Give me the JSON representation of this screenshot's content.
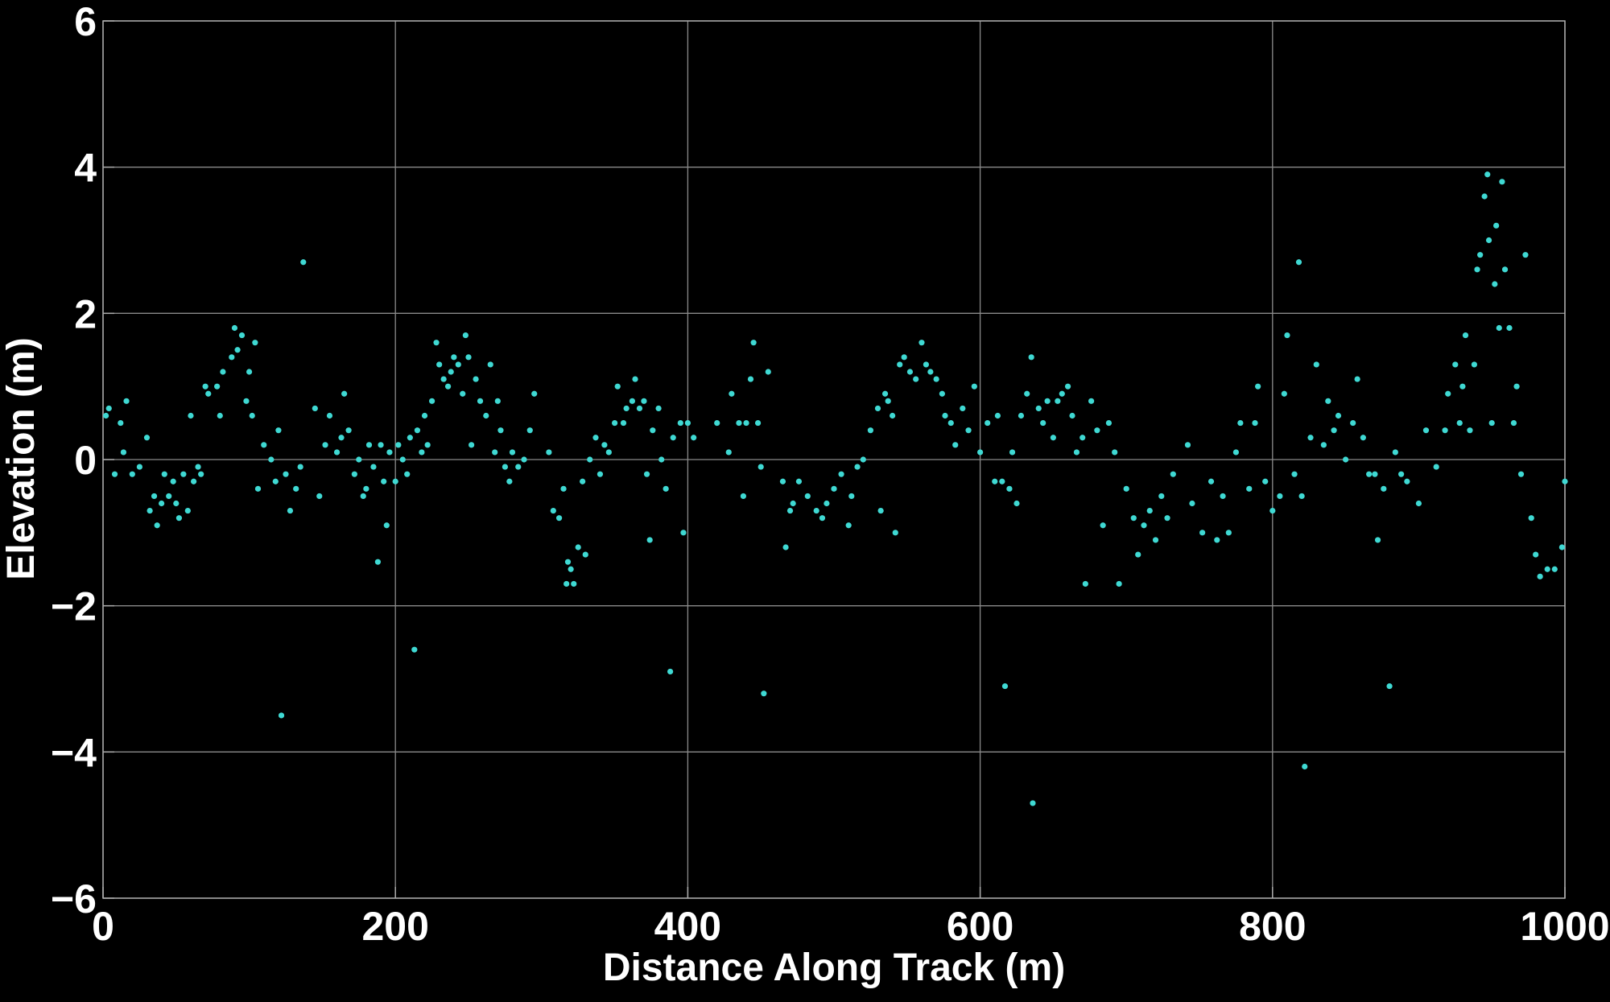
{
  "chart_data": {
    "type": "scatter",
    "x_label": "Distance Along Track (m)",
    "y_label": "Elevation (m)",
    "xlim": [
      0,
      1000
    ],
    "ylim": [
      -6,
      6
    ],
    "xticks": [
      0,
      200,
      400,
      600,
      800,
      1000
    ],
    "yticks": [
      {
        "value": -6,
        "label": "−6"
      },
      {
        "value": -4,
        "label": "−4"
      },
      {
        "value": -2,
        "label": "−2"
      },
      0,
      2,
      4,
      6
    ],
    "grid": true,
    "color": "#3fd9d3",
    "x": [
      2,
      4,
      8,
      12,
      14,
      16,
      20,
      25,
      30,
      32,
      35,
      37,
      40,
      42,
      45,
      48,
      50,
      52,
      55,
      58,
      60,
      62,
      65,
      67,
      70,
      72,
      78,
      80,
      82,
      88,
      90,
      92,
      95,
      98,
      100,
      102,
      104,
      106,
      110,
      115,
      118,
      120,
      122,
      125,
      128,
      132,
      135,
      137,
      145,
      148,
      152,
      155,
      160,
      163,
      165,
      168,
      172,
      175,
      178,
      180,
      182,
      185,
      188,
      190,
      192,
      194,
      196,
      200,
      202,
      205,
      208,
      210,
      213,
      215,
      218,
      220,
      222,
      225,
      228,
      230,
      233,
      236,
      238,
      240,
      243,
      246,
      248,
      250,
      252,
      255,
      258,
      262,
      265,
      268,
      270,
      272,
      275,
      278,
      280,
      284,
      288,
      292,
      295,
      305,
      308,
      312,
      315,
      317,
      318,
      320,
      322,
      325,
      328,
      330,
      333,
      337,
      340,
      343,
      346,
      350,
      352,
      356,
      358,
      362,
      364,
      367,
      370,
      372,
      374,
      376,
      380,
      382,
      385,
      388,
      390,
      395,
      397,
      400,
      404,
      420,
      428,
      430,
      435,
      438,
      440,
      443,
      445,
      448,
      450,
      452,
      455,
      465,
      467,
      470,
      472,
      476,
      482,
      488,
      492,
      495,
      500,
      505,
      510,
      512,
      516,
      520,
      525,
      530,
      532,
      535,
      537,
      540,
      542,
      545,
      548,
      552,
      556,
      560,
      563,
      566,
      570,
      574,
      576,
      580,
      583,
      588,
      592,
      596,
      600,
      605,
      610,
      612,
      615,
      617,
      620,
      622,
      625,
      628,
      632,
      635,
      636,
      640,
      643,
      646,
      650,
      653,
      656,
      660,
      663,
      666,
      670,
      672,
      676,
      680,
      684,
      688,
      692,
      695,
      700,
      705,
      708,
      712,
      716,
      720,
      724,
      728,
      732,
      742,
      745,
      752,
      758,
      762,
      766,
      770,
      775,
      778,
      784,
      788,
      790,
      795,
      800,
      805,
      808,
      810,
      815,
      818,
      820,
      822,
      826,
      830,
      835,
      838,
      842,
      845,
      850,
      855,
      858,
      862,
      866,
      870,
      872,
      876,
      880,
      884,
      888,
      892,
      900,
      905,
      912,
      918,
      920,
      925,
      928,
      930,
      932,
      935,
      938,
      940,
      942,
      945,
      947,
      948,
      950,
      952,
      953,
      955,
      957,
      959,
      962,
      965,
      967,
      970,
      973,
      977,
      980,
      983,
      988,
      993,
      998,
      1000
    ],
    "values": [
      0.6,
      0.7,
      -0.2,
      0.5,
      0.1,
      0.8,
      -0.2,
      -0.1,
      0.3,
      -0.7,
      -0.5,
      -0.9,
      -0.6,
      -0.2,
      -0.5,
      -0.3,
      -0.6,
      -0.8,
      -0.2,
      -0.7,
      0.6,
      -0.3,
      -0.1,
      -0.2,
      1.0,
      0.9,
      1.0,
      0.6,
      1.2,
      1.4,
      1.8,
      1.5,
      1.7,
      0.8,
      1.2,
      0.6,
      1.6,
      -0.4,
      0.2,
      0.0,
      -0.3,
      0.4,
      -3.5,
      -0.2,
      -0.7,
      -0.4,
      -0.1,
      2.7,
      0.7,
      -0.5,
      0.2,
      0.6,
      0.1,
      0.3,
      0.9,
      0.4,
      -0.2,
      0.0,
      -0.5,
      -0.4,
      0.2,
      -0.1,
      -1.4,
      0.2,
      -0.3,
      -0.9,
      0.1,
      -0.3,
      0.2,
      0.0,
      -0.2,
      0.3,
      -2.6,
      0.4,
      0.1,
      0.6,
      0.2,
      0.8,
      1.6,
      1.3,
      1.1,
      1.0,
      1.2,
      1.4,
      1.3,
      0.9,
      1.7,
      1.4,
      0.2,
      1.1,
      0.8,
      0.6,
      1.3,
      0.1,
      0.8,
      0.4,
      -0.1,
      -0.3,
      0.1,
      -0.1,
      0.0,
      0.4,
      0.9,
      0.1,
      -0.7,
      -0.8,
      -0.4,
      -1.7,
      -1.4,
      -1.5,
      -1.7,
      -1.2,
      -0.3,
      -1.3,
      0.0,
      0.3,
      -0.2,
      0.2,
      0.1,
      0.5,
      1.0,
      0.5,
      0.7,
      0.8,
      1.1,
      0.7,
      0.8,
      -0.2,
      -1.1,
      0.4,
      0.7,
      0.0,
      -0.4,
      -2.9,
      0.3,
      0.5,
      -1.0,
      0.5,
      0.3,
      0.5,
      0.1,
      0.9,
      0.5,
      -0.5,
      0.5,
      1.1,
      1.6,
      0.5,
      -0.1,
      -3.2,
      1.2,
      -0.3,
      -1.2,
      -0.7,
      -0.6,
      -0.3,
      -0.5,
      -0.7,
      -0.8,
      -0.6,
      -0.4,
      -0.2,
      -0.9,
      -0.5,
      -0.1,
      0.0,
      0.4,
      0.7,
      -0.7,
      0.9,
      0.8,
      0.6,
      -1.0,
      1.3,
      1.4,
      1.2,
      1.1,
      1.6,
      1.3,
      1.2,
      1.1,
      0.9,
      0.6,
      0.5,
      0.2,
      0.7,
      0.4,
      1.0,
      0.1,
      0.5,
      -0.3,
      0.6,
      -0.3,
      -3.1,
      -0.4,
      0.1,
      -0.6,
      0.6,
      0.9,
      1.4,
      -4.7,
      0.7,
      0.5,
      0.8,
      0.3,
      0.8,
      0.9,
      1.0,
      0.6,
      0.1,
      0.3,
      -1.7,
      0.8,
      0.4,
      -0.9,
      0.5,
      0.1,
      -1.7,
      -0.4,
      -0.8,
      -1.3,
      -0.9,
      -0.7,
      -1.1,
      -0.5,
      -0.8,
      -0.2,
      0.2,
      -0.6,
      -1.0,
      -0.3,
      -1.1,
      -0.5,
      -1.0,
      0.1,
      0.5,
      -0.4,
      0.5,
      1.0,
      -0.3,
      -0.7,
      -0.5,
      0.9,
      1.7,
      -0.2,
      2.7,
      -0.5,
      -4.2,
      0.3,
      1.3,
      0.2,
      0.8,
      0.4,
      0.6,
      0.0,
      0.5,
      1.1,
      0.3,
      -0.2,
      -0.2,
      -1.1,
      -0.4,
      -3.1,
      0.1,
      -0.2,
      -0.3,
      -0.6,
      0.4,
      -0.1,
      0.4,
      0.9,
      1.3,
      0.5,
      1.0,
      1.7,
      0.4,
      1.3,
      2.6,
      2.8,
      3.6,
      3.9,
      3.0,
      0.5,
      2.4,
      3.2,
      1.8,
      3.8,
      2.6,
      1.8,
      0.5,
      1.0,
      -0.2,
      2.8,
      -0.8,
      -1.3,
      -1.6,
      -1.5,
      -1.5,
      -1.2,
      -0.3
    ]
  }
}
